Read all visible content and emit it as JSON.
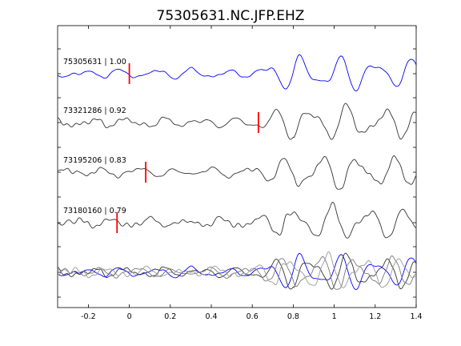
{
  "chart_data": {
    "type": "line",
    "title": "75305631.NC.JFP.EHZ",
    "xlabel": "",
    "ylabel": "",
    "xlim": [
      -0.35,
      1.4
    ],
    "x_ticks": [
      -0.2,
      0,
      0.2,
      0.4,
      0.6,
      0.8,
      1,
      1.2,
      1.4
    ],
    "x_tick_labels": [
      "-0.2",
      "0",
      "0.2",
      "0.4",
      "0.6",
      "0.8",
      "1",
      "1.2",
      "1.4"
    ],
    "grid": false,
    "traces": [
      {
        "label": "75305631 | 1.00",
        "color": "#0000ff",
        "pick_time": 0.0
      },
      {
        "label": "73321286 | 0.92",
        "color": "#333333",
        "pick_time": 0.63
      },
      {
        "label": "73195206 | 0.83",
        "color": "#333333",
        "pick_time": 0.08
      },
      {
        "label": "73180160 | 0.79",
        "color": "#333333",
        "pick_time": -0.06
      }
    ],
    "stack": {
      "colors": [
        "#0000ff",
        "#333333",
        "#777777",
        "#999999"
      ]
    },
    "pick_color": "#ff0000"
  }
}
